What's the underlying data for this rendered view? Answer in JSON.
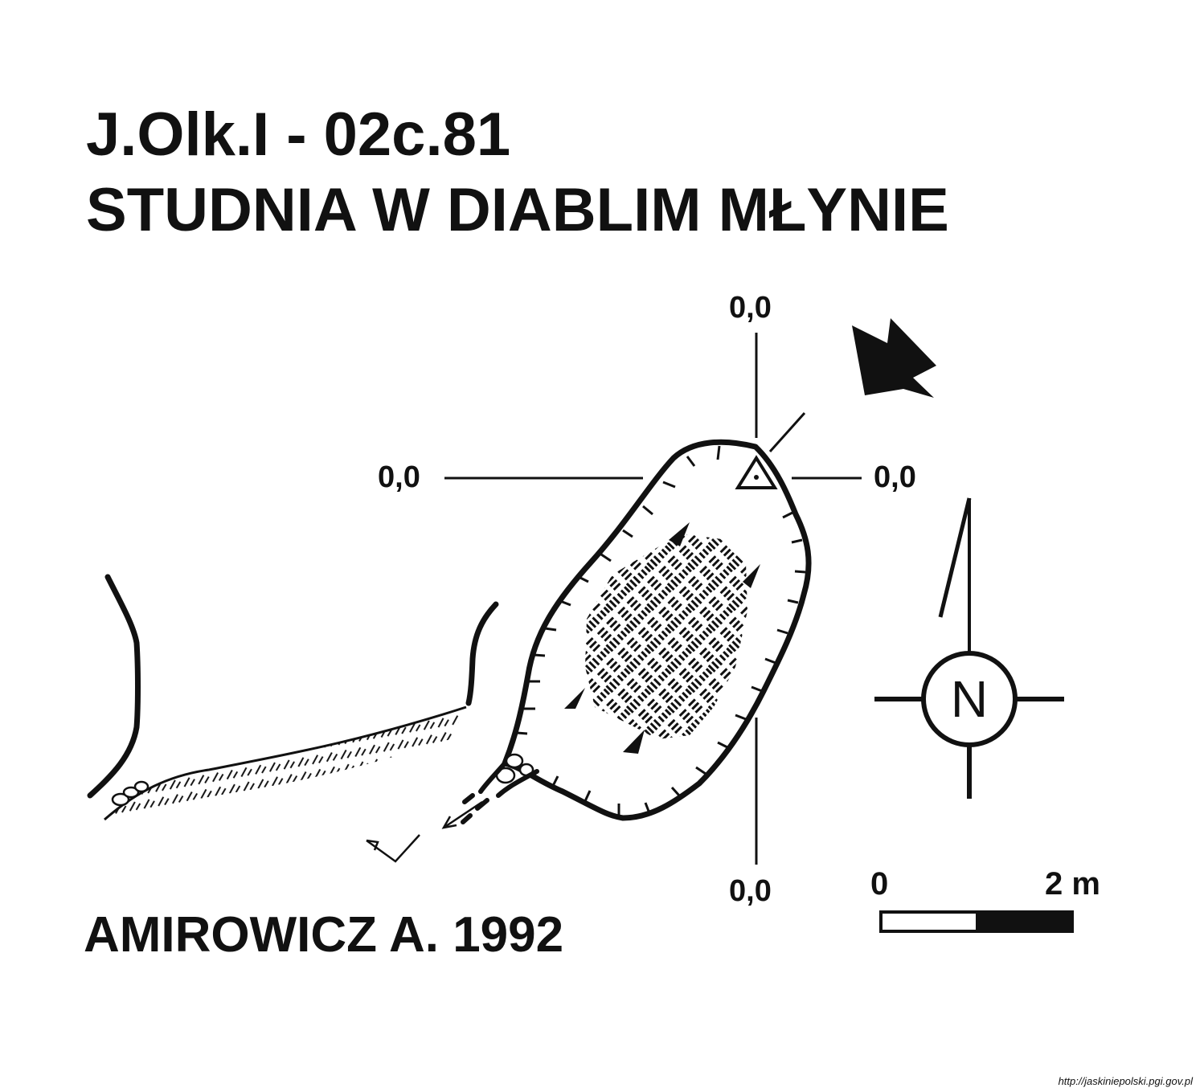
{
  "title": {
    "code": "J.Olk.I - 02c.81",
    "name": "STUDNIA W DIABLIM MŁYNIE"
  },
  "author": "AMIROWICZ A. 1992",
  "levels": {
    "top": "0,0",
    "left": "0,0",
    "right": "0,0",
    "bottom": "0,0"
  },
  "north": {
    "letter": "N"
  },
  "scale": {
    "start_label": "0",
    "end_label": "2 m"
  },
  "source_url": "http://jaskiniepolski.pgi.gov.pl"
}
